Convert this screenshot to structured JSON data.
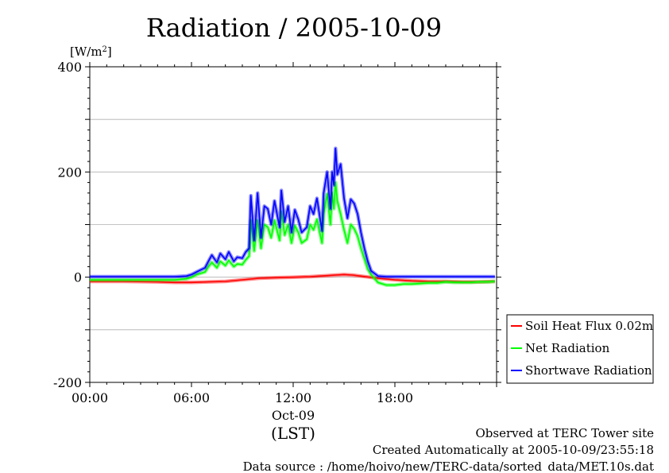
{
  "chart_data": {
    "type": "line",
    "title": "Radiation / 2005-10-09",
    "ylabel_prefix": "[W/m",
    "ylabel_sup": "2",
    "ylabel_suffix": "]",
    "x_range": [
      "00:00",
      "23:59"
    ],
    "ylim": [
      -200,
      400
    ],
    "y_ticks": [
      {
        "value": 400,
        "label": "400"
      },
      {
        "value": 300,
        "label": ""
      },
      {
        "value": 200,
        "label": "200"
      },
      {
        "value": 100,
        "label": ""
      },
      {
        "value": 0,
        "label": "0"
      },
      {
        "value": -100,
        "label": ""
      },
      {
        "value": -200,
        "label": "-200"
      }
    ],
    "x_ticks": [
      {
        "hour": 0,
        "label": "00:00"
      },
      {
        "hour": 6,
        "label": "06:00"
      },
      {
        "hour": 12,
        "label": "12:00"
      },
      {
        "hour": 18,
        "label": "18:00"
      }
    ],
    "x_date_label": "Oct-09",
    "x_unit_label": "(LST)",
    "grid": true,
    "legend_position": "bottom-right outside",
    "series": [
      {
        "name": "Soil Heat Flux 0.02m",
        "color": "#ff0000",
        "points": [
          [
            0.0,
            -8
          ],
          [
            2.0,
            -8
          ],
          [
            4.0,
            -9
          ],
          [
            5.0,
            -10
          ],
          [
            6.0,
            -10
          ],
          [
            7.0,
            -9
          ],
          [
            8.0,
            -8
          ],
          [
            9.0,
            -5
          ],
          [
            10.0,
            -2
          ],
          [
            11.0,
            -1
          ],
          [
            12.0,
            0
          ],
          [
            13.0,
            1
          ],
          [
            14.0,
            3
          ],
          [
            14.5,
            4
          ],
          [
            15.0,
            5
          ],
          [
            15.5,
            4
          ],
          [
            16.0,
            2
          ],
          [
            17.0,
            -2
          ],
          [
            18.0,
            -5
          ],
          [
            19.0,
            -7
          ],
          [
            20.0,
            -8
          ],
          [
            21.0,
            -8
          ],
          [
            22.0,
            -9
          ],
          [
            23.0,
            -9
          ],
          [
            23.9,
            -8
          ]
        ]
      },
      {
        "name": "Net Radiation",
        "color": "#00ff00",
        "points": [
          [
            0.0,
            -5
          ],
          [
            1.0,
            -5
          ],
          [
            2.0,
            -5
          ],
          [
            3.0,
            -5
          ],
          [
            4.0,
            -5
          ],
          [
            5.0,
            -5
          ],
          [
            5.7,
            -3
          ],
          [
            6.0,
            0
          ],
          [
            6.3,
            5
          ],
          [
            6.8,
            10
          ],
          [
            7.0,
            20
          ],
          [
            7.2,
            28
          ],
          [
            7.5,
            18
          ],
          [
            7.7,
            30
          ],
          [
            8.0,
            22
          ],
          [
            8.2,
            32
          ],
          [
            8.5,
            20
          ],
          [
            8.7,
            25
          ],
          [
            9.0,
            24
          ],
          [
            9.2,
            33
          ],
          [
            9.4,
            40
          ],
          [
            9.5,
            108
          ],
          [
            9.7,
            50
          ],
          [
            9.9,
            108
          ],
          [
            10.1,
            55
          ],
          [
            10.3,
            100
          ],
          [
            10.5,
            95
          ],
          [
            10.7,
            75
          ],
          [
            10.9,
            108
          ],
          [
            11.2,
            70
          ],
          [
            11.3,
            125
          ],
          [
            11.5,
            80
          ],
          [
            11.7,
            100
          ],
          [
            11.9,
            65
          ],
          [
            12.1,
            98
          ],
          [
            12.3,
            85
          ],
          [
            12.5,
            65
          ],
          [
            12.8,
            72
          ],
          [
            13.0,
            100
          ],
          [
            13.2,
            90
          ],
          [
            13.4,
            110
          ],
          [
            13.7,
            65
          ],
          [
            13.8,
            120
          ],
          [
            14.0,
            158
          ],
          [
            14.2,
            100
          ],
          [
            14.3,
            160
          ],
          [
            14.4,
            130
          ],
          [
            14.5,
            180
          ],
          [
            14.6,
            145
          ],
          [
            14.8,
            120
          ],
          [
            15.0,
            90
          ],
          [
            15.2,
            65
          ],
          [
            15.4,
            100
          ],
          [
            15.6,
            92
          ],
          [
            15.8,
            78
          ],
          [
            16.0,
            55
          ],
          [
            16.2,
            35
          ],
          [
            16.4,
            15
          ],
          [
            16.6,
            5
          ],
          [
            17.0,
            -10
          ],
          [
            17.5,
            -15
          ],
          [
            18.0,
            -15
          ],
          [
            18.5,
            -13
          ],
          [
            19.0,
            -13
          ],
          [
            19.5,
            -12
          ],
          [
            20.0,
            -11
          ],
          [
            20.5,
            -11
          ],
          [
            21.0,
            -9
          ],
          [
            21.5,
            -10
          ],
          [
            22.0,
            -10
          ],
          [
            22.5,
            -10
          ],
          [
            23.0,
            -9
          ],
          [
            23.5,
            -9
          ],
          [
            23.9,
            -8
          ]
        ]
      },
      {
        "name": "Shortwave Radiation",
        "color": "#0000ff",
        "points": [
          [
            0.0,
            1
          ],
          [
            1.0,
            1
          ],
          [
            2.0,
            1
          ],
          [
            3.0,
            1
          ],
          [
            4.0,
            1
          ],
          [
            5.0,
            1
          ],
          [
            5.7,
            2
          ],
          [
            6.0,
            5
          ],
          [
            6.3,
            10
          ],
          [
            6.8,
            18
          ],
          [
            7.0,
            30
          ],
          [
            7.2,
            42
          ],
          [
            7.5,
            28
          ],
          [
            7.7,
            45
          ],
          [
            8.0,
            34
          ],
          [
            8.2,
            48
          ],
          [
            8.5,
            30
          ],
          [
            8.7,
            38
          ],
          [
            9.0,
            36
          ],
          [
            9.2,
            48
          ],
          [
            9.4,
            55
          ],
          [
            9.5,
            155
          ],
          [
            9.7,
            70
          ],
          [
            9.9,
            160
          ],
          [
            10.1,
            75
          ],
          [
            10.3,
            135
          ],
          [
            10.5,
            130
          ],
          [
            10.7,
            100
          ],
          [
            10.9,
            145
          ],
          [
            11.2,
            95
          ],
          [
            11.3,
            165
          ],
          [
            11.5,
            105
          ],
          [
            11.7,
            135
          ],
          [
            11.9,
            85
          ],
          [
            12.1,
            128
          ],
          [
            12.3,
            110
          ],
          [
            12.5,
            85
          ],
          [
            12.8,
            95
          ],
          [
            13.0,
            135
          ],
          [
            13.2,
            120
          ],
          [
            13.4,
            150
          ],
          [
            13.7,
            88
          ],
          [
            13.8,
            160
          ],
          [
            14.0,
            200
          ],
          [
            14.2,
            130
          ],
          [
            14.3,
            200
          ],
          [
            14.4,
            175
          ],
          [
            14.5,
            245
          ],
          [
            14.6,
            195
          ],
          [
            14.8,
            215
          ],
          [
            15.0,
            150
          ],
          [
            15.2,
            112
          ],
          [
            15.4,
            148
          ],
          [
            15.6,
            140
          ],
          [
            15.8,
            120
          ],
          [
            16.0,
            85
          ],
          [
            16.2,
            55
          ],
          [
            16.4,
            30
          ],
          [
            16.6,
            12
          ],
          [
            17.0,
            2
          ],
          [
            17.5,
            1
          ],
          [
            18.0,
            1
          ],
          [
            19.0,
            1
          ],
          [
            20.0,
            1
          ],
          [
            21.0,
            1
          ],
          [
            22.0,
            1
          ],
          [
            23.0,
            1
          ],
          [
            23.9,
            1
          ]
        ]
      }
    ]
  },
  "footer": {
    "line1": "Observed at TERC Tower site",
    "line2": "Created Automatically at 2005-10-09/23:55:18",
    "line3": "Data source : /home/hoivo/new/TERC-data/sorted_data/MET.10s.dat"
  }
}
